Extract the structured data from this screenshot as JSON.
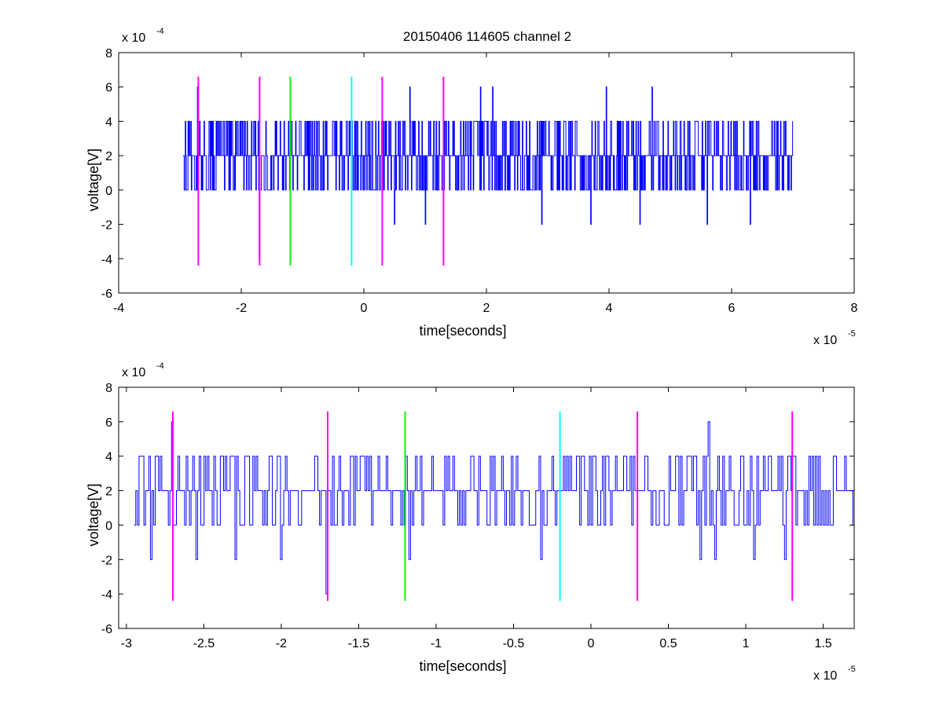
{
  "figure": {
    "title": "20150406 114605 channel 2"
  },
  "chart_data": [
    {
      "type": "line",
      "title": "20150406 114605 channel 2",
      "xlabel": "time[seconds]",
      "ylabel": "voltage[V]",
      "x_exponent_label": "x 10",
      "x_exponent": "-5",
      "y_exponent_label": "x 10",
      "y_exponent": "-4",
      "xlim": [
        -4,
        8
      ],
      "ylim": [
        -6,
        8
      ],
      "xticks": [
        -4,
        -2,
        0,
        2,
        4,
        6,
        8
      ],
      "yticks": [
        -6,
        -4,
        -2,
        0,
        2,
        4,
        6,
        8
      ],
      "xtick_labels": [
        "-4",
        "-2",
        "0",
        "2",
        "4",
        "6",
        "8"
      ],
      "ytick_labels": [
        "-6",
        "-4",
        "-2",
        "0",
        "2",
        "4",
        "6",
        "8"
      ],
      "grid": false,
      "signal": {
        "name": "voltage",
        "color": "#0000ff",
        "x_start": -2.95,
        "x_end": 7.0,
        "levels": [
          -2,
          0,
          2,
          4,
          6
        ],
        "baseline": 2
      },
      "markers": [
        {
          "x": -2.7,
          "y_range": [
            -4.4,
            6.6
          ],
          "color": "#ff00ff"
        },
        {
          "x": -1.7,
          "y_range": [
            -4.4,
            6.6
          ],
          "color": "#ff00ff"
        },
        {
          "x": -1.2,
          "y_range": [
            -4.4,
            6.6
          ],
          "color": "#00ff00"
        },
        {
          "x": -0.2,
          "y_range": [
            -4.4,
            6.6
          ],
          "color": "#00ffff"
        },
        {
          "x": 0.3,
          "y_range": [
            -4.4,
            6.6
          ],
          "color": "#ff00ff"
        },
        {
          "x": 1.3,
          "y_range": [
            -4.4,
            6.6
          ],
          "color": "#ff00ff"
        }
      ],
      "peaks": [
        {
          "x": -2.72,
          "y": 6
        },
        {
          "x": 0.75,
          "y": 6
        },
        {
          "x": 1.9,
          "y": 6
        },
        {
          "x": 2.1,
          "y": 6
        },
        {
          "x": 3.95,
          "y": 6
        },
        {
          "x": 4.7,
          "y": 6
        },
        {
          "x": -1.71,
          "y": -4
        },
        {
          "x": 0.5,
          "y": -2
        },
        {
          "x": 1.0,
          "y": -2
        },
        {
          "x": 2.9,
          "y": -2
        },
        {
          "x": 3.7,
          "y": -2
        },
        {
          "x": 4.5,
          "y": -2
        },
        {
          "x": 5.6,
          "y": -2
        },
        {
          "x": 6.3,
          "y": -2
        }
      ]
    },
    {
      "type": "line",
      "title": "",
      "xlabel": "time[seconds]",
      "ylabel": "voltage[V]",
      "x_exponent_label": "x 10",
      "x_exponent": "-5",
      "y_exponent_label": "x 10",
      "y_exponent": "-4",
      "xlim": [
        -3.05,
        1.7
      ],
      "ylim": [
        -6,
        8
      ],
      "xticks": [
        -3,
        -2.5,
        -2,
        -1.5,
        -1,
        -0.5,
        0,
        0.5,
        1,
        1.5
      ],
      "yticks": [
        -6,
        -4,
        -2,
        0,
        2,
        4,
        6,
        8
      ],
      "xtick_labels": [
        "-3",
        "-2.5",
        "-2",
        "-1.5",
        "-1",
        "-0.5",
        "0",
        "0.5",
        "1",
        "1.5"
      ],
      "ytick_labels": [
        "-6",
        "-4",
        "-2",
        "0",
        "2",
        "4",
        "6",
        "8"
      ],
      "grid": false,
      "signal": {
        "name": "voltage",
        "color": "#0000ff",
        "x_start": -2.95,
        "x_end": 1.7,
        "levels": [
          -4,
          -2,
          0,
          2,
          4,
          6
        ],
        "baseline": 2
      },
      "markers": [
        {
          "x": -2.7,
          "y_range": [
            -4.4,
            6.6
          ],
          "color": "#ff00ff"
        },
        {
          "x": -1.7,
          "y_range": [
            -4.4,
            6.6
          ],
          "color": "#ff00ff"
        },
        {
          "x": -1.2,
          "y_range": [
            -4.4,
            6.6
          ],
          "color": "#00ff00"
        },
        {
          "x": -0.2,
          "y_range": [
            -4.4,
            6.6
          ],
          "color": "#00ffff"
        },
        {
          "x": 0.3,
          "y_range": [
            -4.4,
            6.6
          ],
          "color": "#ff00ff"
        },
        {
          "x": 1.3,
          "y_range": [
            -4.4,
            6.6
          ],
          "color": "#ff00ff"
        }
      ],
      "peaks": [
        {
          "x": -2.71,
          "y": 6
        },
        {
          "x": 0.76,
          "y": 6
        },
        {
          "x": -1.71,
          "y": -4
        },
        {
          "x": -2.85,
          "y": -2
        },
        {
          "x": -2.55,
          "y": -2
        },
        {
          "x": -2.3,
          "y": -2
        },
        {
          "x": -2.0,
          "y": -2
        },
        {
          "x": -1.18,
          "y": -2
        },
        {
          "x": -0.32,
          "y": -2
        },
        {
          "x": 0.7,
          "y": -2
        },
        {
          "x": 0.8,
          "y": -2
        },
        {
          "x": 1.05,
          "y": -2
        },
        {
          "x": 1.25,
          "y": -2
        }
      ]
    }
  ]
}
